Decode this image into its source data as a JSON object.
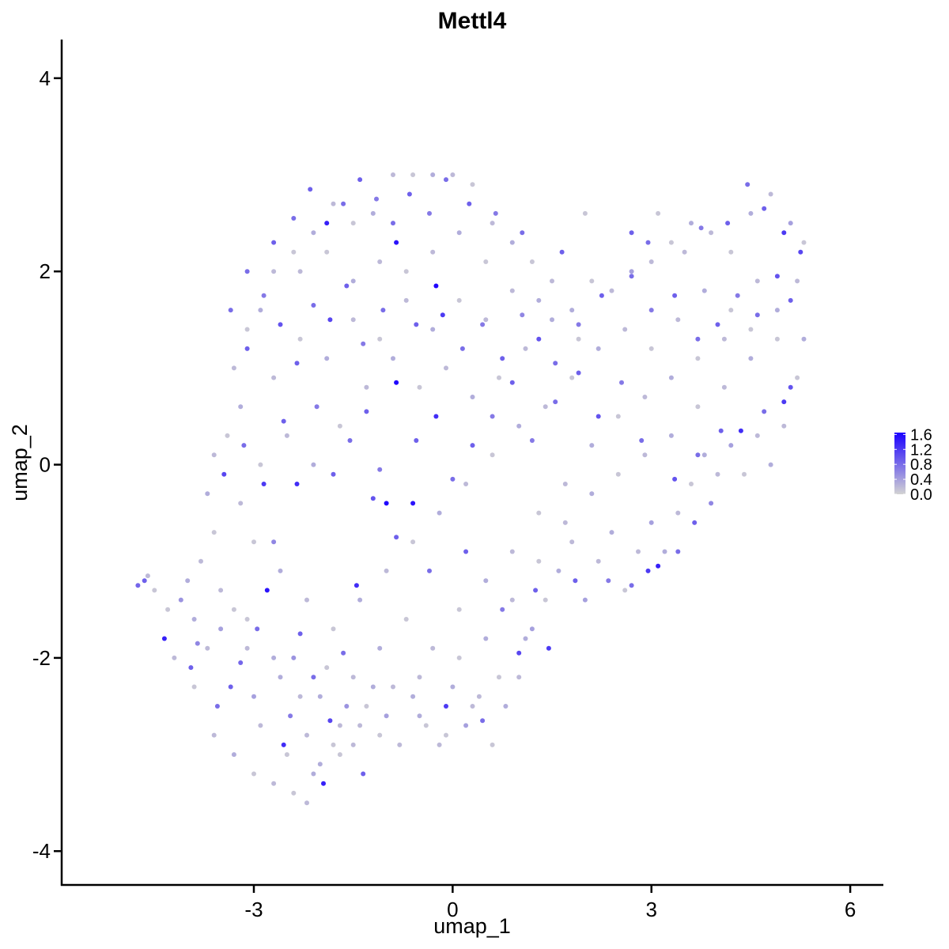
{
  "chart_data": {
    "type": "scatter",
    "title": "Mettl4",
    "xlabel": "umap_1",
    "ylabel": "umap_2",
    "xlim": [
      -5.9,
      6.5
    ],
    "ylim": [
      -4.35,
      4.4
    ],
    "x_ticks": [
      -3,
      0,
      3,
      6
    ],
    "y_ticks": [
      -4,
      -2,
      0,
      2,
      4
    ],
    "x_tick_labels": [
      "-3",
      "0",
      "3",
      "6"
    ],
    "y_tick_labels": [
      "-4",
      "-2",
      "0",
      "2",
      "4"
    ],
    "grid": false,
    "legend_placement": "right",
    "colorbar": {
      "min": 0.0,
      "max": 1.65,
      "ticks": [
        0.0,
        0.4,
        0.8,
        1.2,
        1.6
      ],
      "tick_labels": [
        "0.0",
        "0.4",
        "0.8",
        "1.2",
        "1.6"
      ],
      "low_color": "#d3d3d3",
      "high_color": "#1a00ff"
    },
    "points": [
      [
        -4.75,
        -1.25,
        0.85
      ],
      [
        -4.65,
        -1.2,
        0.9
      ],
      [
        -4.35,
        -1.8,
        1.4
      ],
      [
        -3.95,
        -2.1,
        0.9
      ],
      [
        -3.85,
        -1.85,
        0.6
      ],
      [
        -3.55,
        -2.5,
        0.8
      ],
      [
        -3.35,
        -2.3,
        0.9
      ],
      [
        -3.2,
        -2.05,
        0.85
      ],
      [
        -2.95,
        -1.7,
        0.8
      ],
      [
        -2.8,
        -1.3,
        1.5
      ],
      [
        -2.7,
        -0.8,
        0.6
      ],
      [
        -2.55,
        -2.9,
        1.3
      ],
      [
        -2.45,
        -2.6,
        0.7
      ],
      [
        -2.3,
        -1.75,
        0.9
      ],
      [
        -2.1,
        -2.2,
        0.8
      ],
      [
        -1.95,
        -3.3,
        1.4
      ],
      [
        -1.85,
        -2.65,
        1.1
      ],
      [
        -1.65,
        -1.95,
        0.8
      ],
      [
        -1.45,
        -1.25,
        1.3
      ],
      [
        -1.35,
        -3.2,
        0.9
      ],
      [
        -1.2,
        -0.35,
        1.0
      ],
      [
        -1.0,
        -0.4,
        1.6
      ],
      [
        -0.85,
        -0.75,
        0.9
      ],
      [
        -0.6,
        -0.4,
        1.5
      ],
      [
        -0.35,
        -1.1,
        0.8
      ],
      [
        -0.1,
        -2.5,
        1.2
      ],
      [
        0.2,
        -0.9,
        0.9
      ],
      [
        0.45,
        -2.65,
        0.8
      ],
      [
        0.75,
        -1.5,
        0.7
      ],
      [
        1.0,
        -1.95,
        1.1
      ],
      [
        1.25,
        -1.3,
        0.9
      ],
      [
        1.45,
        -1.9,
        1.2
      ],
      [
        1.85,
        -1.2,
        0.9
      ],
      [
        2.35,
        -1.2,
        0.7
      ],
      [
        2.7,
        -1.25,
        0.8
      ],
      [
        2.95,
        -1.1,
        1.2
      ],
      [
        3.1,
        -1.05,
        1.4
      ],
      [
        3.4,
        -0.9,
        0.8
      ],
      [
        3.65,
        -0.6,
        0.9
      ],
      [
        3.9,
        -0.4,
        0.6
      ],
      [
        -3.45,
        -0.1,
        1.1
      ],
      [
        -3.15,
        0.2,
        0.8
      ],
      [
        -2.85,
        -0.2,
        1.2
      ],
      [
        -2.55,
        0.45,
        0.9
      ],
      [
        -2.35,
        -0.2,
        1.3
      ],
      [
        -2.05,
        0.6,
        0.7
      ],
      [
        -1.8,
        -0.1,
        0.9
      ],
      [
        -1.55,
        0.25,
        0.8
      ],
      [
        -1.3,
        0.55,
        0.9
      ],
      [
        -1.1,
        -0.05,
        0.7
      ],
      [
        -0.85,
        0.85,
        1.6
      ],
      [
        -0.55,
        0.25,
        0.9
      ],
      [
        -0.25,
        0.5,
        1.3
      ],
      [
        0.0,
        -0.15,
        0.8
      ],
      [
        0.3,
        0.2,
        0.9
      ],
      [
        0.6,
        0.5,
        0.7
      ],
      [
        0.9,
        0.85,
        0.9
      ],
      [
        1.2,
        0.25,
        0.7
      ],
      [
        1.55,
        0.65,
        0.8
      ],
      [
        1.9,
        0.95,
        0.9
      ],
      [
        2.2,
        0.5,
        1.0
      ],
      [
        2.55,
        0.85,
        0.7
      ],
      [
        2.85,
        0.25,
        0.8
      ],
      [
        3.35,
        -0.15,
        1.0
      ],
      [
        3.7,
        0.1,
        0.8
      ],
      [
        4.05,
        0.35,
        0.9
      ],
      [
        4.35,
        0.35,
        1.3
      ],
      [
        4.7,
        0.55,
        0.8
      ],
      [
        5.0,
        0.65,
        1.2
      ],
      [
        5.1,
        0.8,
        1.0
      ],
      [
        -3.35,
        1.6,
        0.8
      ],
      [
        -3.1,
        1.2,
        0.9
      ],
      [
        -2.85,
        1.75,
        0.7
      ],
      [
        -2.6,
        1.45,
        1.0
      ],
      [
        -2.35,
        1.05,
        0.9
      ],
      [
        -2.1,
        1.65,
        0.8
      ],
      [
        -1.85,
        1.5,
        1.1
      ],
      [
        -1.6,
        1.85,
        0.9
      ],
      [
        -1.35,
        1.25,
        0.7
      ],
      [
        -1.05,
        1.6,
        0.8
      ],
      [
        -0.85,
        2.3,
        1.5
      ],
      [
        -0.55,
        1.45,
        0.9
      ],
      [
        -0.25,
        1.85,
        1.6
      ],
      [
        -0.15,
        1.55,
        1.2
      ],
      [
        0.15,
        1.2,
        0.8
      ],
      [
        0.45,
        1.45,
        0.7
      ],
      [
        0.75,
        1.1,
        0.9
      ],
      [
        1.05,
        1.55,
        0.6
      ],
      [
        1.3,
        1.3,
        1.0
      ],
      [
        1.55,
        1.05,
        0.8
      ],
      [
        1.9,
        1.45,
        0.7
      ],
      [
        2.25,
        1.75,
        0.9
      ],
      [
        2.7,
        1.95,
        0.8
      ],
      [
        3.0,
        1.6,
        0.7
      ],
      [
        3.35,
        1.75,
        0.9
      ],
      [
        3.7,
        1.3,
        0.8
      ],
      [
        4.0,
        1.45,
        0.9
      ],
      [
        4.3,
        1.75,
        0.7
      ],
      [
        4.6,
        1.55,
        0.8
      ],
      [
        4.9,
        1.95,
        1.0
      ],
      [
        5.1,
        1.7,
        0.9
      ],
      [
        5.25,
        2.2,
        1.1
      ],
      [
        5.0,
        2.4,
        1.2
      ],
      [
        4.7,
        2.65,
        0.9
      ],
      [
        4.45,
        2.9,
        0.8
      ],
      [
        4.15,
        2.5,
        0.9
      ],
      [
        3.75,
        2.45,
        0.7
      ],
      [
        2.95,
        2.3,
        0.8
      ],
      [
        2.7,
        2.4,
        0.9
      ],
      [
        -3.1,
        2.0,
        0.8
      ],
      [
        -2.7,
        2.3,
        0.9
      ],
      [
        -2.4,
        2.55,
        0.8
      ],
      [
        -2.15,
        2.85,
        0.9
      ],
      [
        -1.9,
        2.5,
        1.4
      ],
      [
        -1.65,
        2.7,
        0.8
      ],
      [
        -1.4,
        2.95,
        0.9
      ],
      [
        -1.15,
        2.75,
        0.7
      ],
      [
        -0.9,
        2.5,
        0.8
      ],
      [
        -0.65,
        2.8,
        0.9
      ],
      [
        -0.35,
        2.6,
        0.7
      ],
      [
        -0.1,
        2.95,
        0.8
      ],
      [
        0.25,
        2.7,
        0.9
      ],
      [
        0.65,
        2.6,
        0.7
      ],
      [
        1.05,
        2.4,
        0.8
      ],
      [
        1.65,
        2.2,
        0.9
      ],
      [
        -4.1,
        -1.4,
        0.5
      ],
      [
        -3.9,
        -1.6,
        0.3
      ],
      [
        -3.7,
        -1.9,
        0.2
      ],
      [
        -3.5,
        -1.7,
        0.4
      ],
      [
        -3.3,
        -1.5,
        0.1
      ],
      [
        -3.1,
        -1.9,
        0.2
      ],
      [
        -3.0,
        -2.4,
        0.4
      ],
      [
        -2.6,
        -2.2,
        0.3
      ],
      [
        -2.4,
        -2.0,
        0.5
      ],
      [
        -2.2,
        -2.8,
        0.2
      ],
      [
        -2.0,
        -2.4,
        0.3
      ],
      [
        -1.8,
        -2.9,
        0.1
      ],
      [
        -1.6,
        -2.5,
        0.5
      ],
      [
        -1.4,
        -2.7,
        0.2
      ],
      [
        -1.2,
        -2.3,
        0.3
      ],
      [
        -1.0,
        -2.6,
        0.4
      ],
      [
        -0.8,
        -2.9,
        0.2
      ],
      [
        -0.6,
        -2.4,
        0.3
      ],
      [
        -0.4,
        -2.7,
        0.1
      ],
      [
        -0.2,
        -2.9,
        0.2
      ],
      [
        0.0,
        -2.3,
        0.3
      ],
      [
        0.2,
        -2.7,
        0.4
      ],
      [
        0.4,
        -2.4,
        0.2
      ],
      [
        0.6,
        -2.9,
        0.1
      ],
      [
        0.8,
        -2.5,
        0.3
      ],
      [
        1.0,
        -2.2,
        0.2
      ],
      [
        1.2,
        -1.7,
        0.4
      ],
      [
        1.4,
        -1.4,
        0.1
      ],
      [
        1.6,
        -1.1,
        0.3
      ],
      [
        1.8,
        -0.8,
        0.2
      ],
      [
        2.0,
        -1.4,
        0.4
      ],
      [
        2.2,
        -1.0,
        0.2
      ],
      [
        2.4,
        -0.7,
        0.3
      ],
      [
        2.6,
        -1.3,
        0.1
      ],
      [
        2.8,
        -0.9,
        0.2
      ],
      [
        3.0,
        -0.6,
        0.4
      ],
      [
        3.2,
        -0.9,
        0.3
      ],
      [
        3.4,
        -0.5,
        0.2
      ],
      [
        3.6,
        -0.2,
        0.1
      ],
      [
        3.8,
        0.1,
        0.3
      ],
      [
        4.0,
        -0.1,
        0.2
      ],
      [
        4.2,
        0.2,
        0.4
      ],
      [
        4.4,
        -0.1,
        0.1
      ],
      [
        4.6,
        0.3,
        0.2
      ],
      [
        4.8,
        0.0,
        0.3
      ],
      [
        5.0,
        0.4,
        0.2
      ],
      [
        5.2,
        0.9,
        0.1
      ],
      [
        5.3,
        1.3,
        0.3
      ],
      [
        5.2,
        1.9,
        0.2
      ],
      [
        5.3,
        2.3,
        0.1
      ],
      [
        5.1,
        2.5,
        0.4
      ],
      [
        4.8,
        2.8,
        0.2
      ],
      [
        4.5,
        2.6,
        0.3
      ],
      [
        4.2,
        2.2,
        0.1
      ],
      [
        3.9,
        2.4,
        0.2
      ],
      [
        3.6,
        2.5,
        0.3
      ],
      [
        3.3,
        2.3,
        0.1
      ],
      [
        3.0,
        2.1,
        0.2
      ],
      [
        2.7,
        2.0,
        0.4
      ],
      [
        2.4,
        1.8,
        0.2
      ],
      [
        2.1,
        1.9,
        0.1
      ],
      [
        1.8,
        1.6,
        0.3
      ],
      [
        1.5,
        1.9,
        0.2
      ],
      [
        1.2,
        2.1,
        0.1
      ],
      [
        0.9,
        2.3,
        0.3
      ],
      [
        0.6,
        2.5,
        0.2
      ],
      [
        0.3,
        2.9,
        0.1
      ],
      [
        0.0,
        3.0,
        0.2
      ],
      [
        -0.3,
        3.0,
        0.3
      ],
      [
        -0.6,
        3.0,
        0.1
      ],
      [
        -0.9,
        3.0,
        0.2
      ],
      [
        -1.2,
        2.6,
        0.3
      ],
      [
        -1.5,
        2.5,
        0.1
      ],
      [
        -1.8,
        2.7,
        0.2
      ],
      [
        -2.1,
        2.4,
        0.3
      ],
      [
        -2.4,
        2.2,
        0.1
      ],
      [
        -2.7,
        2.0,
        0.2
      ],
      [
        -2.9,
        1.6,
        0.3
      ],
      [
        -3.1,
        1.4,
        0.1
      ],
      [
        -3.3,
        1.0,
        0.2
      ],
      [
        -3.2,
        0.6,
        0.3
      ],
      [
        -3.4,
        0.3,
        0.1
      ],
      [
        -3.6,
        0.1,
        0.2
      ],
      [
        -3.7,
        -0.3,
        0.3
      ],
      [
        -3.6,
        -0.7,
        0.1
      ],
      [
        -3.8,
        -1.0,
        0.2
      ],
      [
        -4.0,
        -1.2,
        0.3
      ],
      [
        -4.3,
        -1.5,
        0.1
      ],
      [
        -4.2,
        -2.0,
        0.2
      ],
      [
        -3.9,
        -2.3,
        0.1
      ],
      [
        -3.6,
        -2.8,
        0.2
      ],
      [
        -3.3,
        -3.0,
        0.3
      ],
      [
        -3.0,
        -3.2,
        0.1
      ],
      [
        -2.7,
        -3.3,
        0.2
      ],
      [
        -2.4,
        -3.4,
        0.1
      ],
      [
        -2.2,
        -3.5,
        0.2
      ],
      [
        -2.0,
        -3.1,
        0.3
      ],
      [
        -1.7,
        -3.0,
        0.1
      ],
      [
        -1.5,
        -2.9,
        0.2
      ],
      [
        -1.1,
        -2.8,
        0.1
      ],
      [
        -0.5,
        -2.2,
        0.2
      ],
      [
        0.1,
        -2.0,
        0.1
      ],
      [
        0.5,
        -1.8,
        0.3
      ],
      [
        0.9,
        -1.4,
        0.2
      ],
      [
        1.3,
        -1.0,
        0.1
      ],
      [
        1.7,
        -0.6,
        0.2
      ],
      [
        2.1,
        -0.3,
        0.3
      ],
      [
        2.5,
        -0.1,
        0.1
      ],
      [
        2.9,
        0.1,
        0.2
      ],
      [
        3.3,
        0.3,
        0.3
      ],
      [
        3.7,
        0.6,
        0.1
      ],
      [
        4.1,
        0.8,
        0.2
      ],
      [
        4.5,
        1.1,
        0.3
      ],
      [
        4.9,
        1.3,
        0.1
      ],
      [
        4.6,
        1.9,
        0.2
      ],
      [
        4.2,
        1.6,
        0.1
      ],
      [
        3.8,
        1.8,
        0.3
      ],
      [
        3.4,
        1.5,
        0.2
      ],
      [
        3.0,
        1.2,
        0.1
      ],
      [
        2.6,
        1.4,
        0.2
      ],
      [
        2.2,
        1.2,
        0.3
      ],
      [
        1.8,
        0.9,
        0.1
      ],
      [
        1.4,
        0.6,
        0.2
      ],
      [
        1.0,
        0.4,
        0.3
      ],
      [
        0.6,
        0.1,
        0.1
      ],
      [
        0.2,
        -0.2,
        0.2
      ],
      [
        -0.2,
        -0.5,
        0.3
      ],
      [
        -0.6,
        -0.8,
        0.1
      ],
      [
        -1.0,
        -1.1,
        0.2
      ],
      [
        -1.4,
        -1.4,
        0.3
      ],
      [
        -1.8,
        -1.7,
        0.1
      ],
      [
        -2.2,
        -1.4,
        0.2
      ],
      [
        -2.6,
        -1.1,
        0.3
      ],
      [
        -3.0,
        -0.8,
        0.1
      ],
      [
        -3.2,
        -0.4,
        0.2
      ],
      [
        -2.9,
        0.0,
        0.1
      ],
      [
        -2.5,
        0.3,
        0.2
      ],
      [
        -2.1,
        0.0,
        0.3
      ],
      [
        -1.7,
        0.4,
        0.1
      ],
      [
        -1.3,
        0.8,
        0.2
      ],
      [
        -0.9,
        1.1,
        0.3
      ],
      [
        -0.5,
        0.8,
        0.1
      ],
      [
        -0.1,
        1.0,
        0.2
      ],
      [
        0.3,
        0.7,
        0.3
      ],
      [
        0.7,
        0.9,
        0.1
      ],
      [
        1.1,
        1.2,
        0.2
      ],
      [
        1.5,
        1.5,
        0.3
      ],
      [
        1.9,
        1.3,
        0.1
      ],
      [
        -2.3,
        2.0,
        0.2
      ],
      [
        -1.9,
        2.2,
        0.1
      ],
      [
        -1.5,
        1.9,
        0.3
      ],
      [
        -1.1,
        2.1,
        0.2
      ],
      [
        -0.7,
        2.0,
        0.1
      ],
      [
        -0.3,
        2.2,
        0.2
      ],
      [
        0.1,
        2.4,
        0.3
      ],
      [
        0.5,
        2.1,
        0.1
      ],
      [
        0.9,
        1.8,
        0.2
      ],
      [
        1.3,
        1.7,
        0.3
      ],
      [
        -2.7,
        0.9,
        0.2
      ],
      [
        -2.3,
        1.3,
        0.1
      ],
      [
        -1.9,
        1.1,
        0.3
      ],
      [
        -1.5,
        1.5,
        0.2
      ],
      [
        -1.1,
        1.3,
        0.1
      ],
      [
        -0.7,
        1.7,
        0.2
      ],
      [
        -0.3,
        1.4,
        0.3
      ],
      [
        0.1,
        1.7,
        0.1
      ],
      [
        0.5,
        1.5,
        0.2
      ],
      [
        -3.5,
        -1.3,
        0.2
      ],
      [
        -3.1,
        -1.6,
        0.1
      ],
      [
        -2.7,
        -2.0,
        0.3
      ],
      [
        -2.3,
        -2.4,
        0.2
      ],
      [
        -1.9,
        -2.1,
        0.1
      ],
      [
        -1.5,
        -2.2,
        0.2
      ],
      [
        -1.1,
        -1.9,
        0.3
      ],
      [
        -0.7,
        -1.6,
        0.1
      ],
      [
        -0.3,
        -1.9,
        0.2
      ],
      [
        0.1,
        -1.5,
        0.1
      ],
      [
        0.5,
        -1.2,
        0.3
      ],
      [
        0.9,
        -0.9,
        0.2
      ],
      [
        1.3,
        -0.5,
        0.1
      ],
      [
        1.7,
        -0.2,
        0.2
      ],
      [
        2.1,
        0.2,
        0.3
      ],
      [
        2.5,
        0.5,
        0.1
      ],
      [
        2.9,
        0.7,
        0.2
      ],
      [
        3.3,
        0.9,
        0.3
      ],
      [
        3.7,
        1.1,
        0.1
      ],
      [
        4.1,
        1.3,
        0.2
      ],
      [
        4.5,
        1.4,
        0.1
      ],
      [
        4.9,
        1.6,
        0.3
      ],
      [
        -2.9,
        -2.7,
        0.2
      ],
      [
        -2.5,
        -3.0,
        0.1
      ],
      [
        -2.1,
        -3.2,
        0.3
      ],
      [
        -1.7,
        -2.7,
        0.2
      ],
      [
        -1.3,
        -2.5,
        0.1
      ],
      [
        -0.9,
        -2.3,
        0.2
      ],
      [
        -0.5,
        -2.6,
        0.3
      ],
      [
        -0.1,
        -2.8,
        0.1
      ],
      [
        0.3,
        -2.5,
        0.2
      ],
      [
        0.7,
        -2.2,
        0.1
      ],
      [
        1.1,
        -1.8,
        0.3
      ],
      [
        -4.5,
        -1.3,
        0.1
      ],
      [
        -4.6,
        -1.15,
        0.2
      ],
      [
        3.1,
        2.6,
        0.1
      ],
      [
        3.5,
        2.2,
        0.2
      ],
      [
        2.0,
        2.6,
        0.1
      ]
    ]
  }
}
